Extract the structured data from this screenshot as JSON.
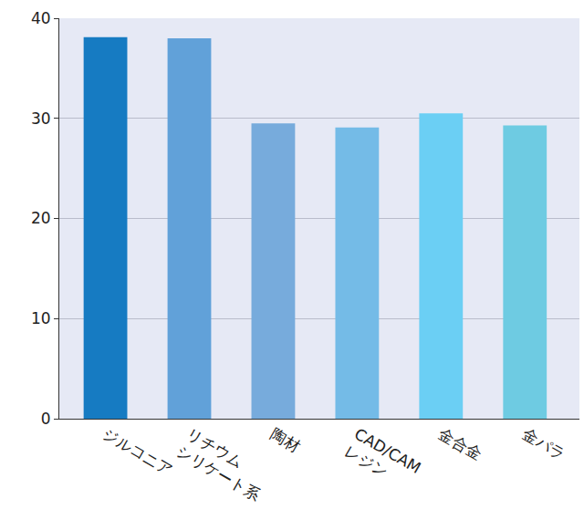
{
  "chart_data": {
    "type": "bar",
    "categories": [
      "ジルコニア",
      "リチウム\nシリケート系",
      "陶材",
      "CAD/CAM\nレジン",
      "金合金",
      "金パラ"
    ],
    "values": [
      38.1,
      38.0,
      29.5,
      29.1,
      30.5,
      29.3
    ],
    "colors": [
      "#167bc2",
      "#61a1d9",
      "#77abdc",
      "#74bbe7",
      "#6bcff4",
      "#6ecbe2"
    ],
    "ylim": [
      0,
      40
    ],
    "yticks": [
      0,
      10,
      20,
      30,
      40
    ],
    "grid": true
  }
}
